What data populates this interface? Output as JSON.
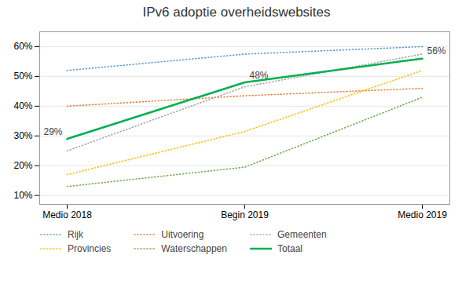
{
  "chart_data": {
    "type": "line",
    "title": "IPv6 adoptie overheidswebsites",
    "categories": [
      "Medio 2018",
      "Begin 2019",
      "Medio 2019"
    ],
    "series": [
      {
        "name": "Rijk",
        "color": "#5B9BD5",
        "line_style": "dotted",
        "values": [
          0.52,
          0.575,
          0.6
        ]
      },
      {
        "name": "Uitvoering",
        "color": "#ED7D31",
        "line_style": "dotted",
        "values": [
          0.4,
          0.435,
          0.46
        ]
      },
      {
        "name": "Gemeenten",
        "color": "#A5A5A5",
        "line_style": "dotted",
        "values": [
          0.25,
          0.465,
          0.575
        ]
      },
      {
        "name": "Provincies",
        "color": "#FFC000",
        "line_style": "dotted",
        "values": [
          0.17,
          0.315,
          0.52
        ]
      },
      {
        "name": "Waterschappen",
        "color": "#70AD47",
        "line_style": "dotted",
        "values": [
          0.13,
          0.195,
          0.43
        ]
      },
      {
        "name": "Totaal",
        "color": "#00B050",
        "line_style": "solid",
        "values": [
          0.29,
          0.48,
          0.56
        ],
        "data_labels": true,
        "value_labels": [
          "29%",
          "48%",
          "56%"
        ]
      }
    ],
    "ylim": [
      0.07,
      0.65
    ],
    "yticks": [
      {
        "value": 0.1,
        "label": "10%"
      },
      {
        "value": 0.2,
        "label": "20%"
      },
      {
        "value": 0.3,
        "label": "30%"
      },
      {
        "value": 0.4,
        "label": "40%"
      },
      {
        "value": 0.5,
        "label": "50%"
      },
      {
        "value": 0.6,
        "label": "60%"
      }
    ],
    "grid": true,
    "legend": "bottom"
  }
}
